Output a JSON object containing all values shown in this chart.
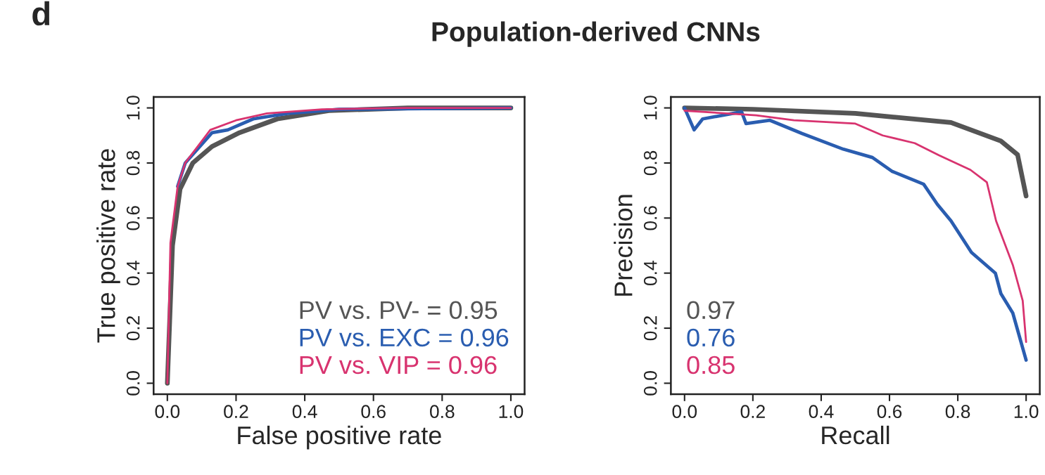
{
  "chart_data": [
    {
      "type": "line",
      "title": "Population-derived CNNs",
      "xlabel": "False positive rate",
      "ylabel": "True positive rate",
      "annotations": [
        "d"
      ],
      "xlim": [
        -0.04,
        1.04
      ],
      "ylim": [
        -0.04,
        1.04
      ],
      "xticks": [
        {
          "value": 0,
          "label": "0.0"
        },
        {
          "value": 0.2,
          "label": "0.2"
        },
        {
          "value": 0.4,
          "label": "0.4"
        },
        {
          "value": 0.6,
          "label": "0.6"
        },
        {
          "value": 0.8,
          "label": "0.8"
        },
        {
          "value": 1,
          "label": "1.0"
        }
      ],
      "yticks": [
        {
          "value": 0,
          "label": "0.0"
        },
        {
          "value": 0.2,
          "label": "0.2"
        },
        {
          "value": 0.4,
          "label": "0.4"
        },
        {
          "value": 0.6,
          "label": "0.6"
        },
        {
          "value": 0.8,
          "label": "0.8"
        },
        {
          "value": 1,
          "label": "1.0"
        }
      ],
      "grid": false,
      "legend": "bottom right",
      "series": [
        {
          "name": "PV vs. PV- = 0.95",
          "color": "#555555",
          "x": [
            0,
            0.015,
            0.037,
            0.074,
            0.13,
            0.21,
            0.32,
            0.47,
            0.7,
            1.0
          ],
          "values": [
            0,
            0.5,
            0.705,
            0.8,
            0.86,
            0.91,
            0.96,
            0.99,
            1.0,
            1.0
          ]
        },
        {
          "name": "PV vs. EXC = 0.96",
          "color": "#2a5db0",
          "x": [
            0.03,
            0.052,
            0.13,
            0.176,
            0.25,
            0.35,
            0.5,
            1.0
          ],
          "values": [
            0.715,
            0.8,
            0.91,
            0.92,
            0.96,
            0.98,
            0.995,
            1.0
          ]
        },
        {
          "name": "PV vs. VIP = 0.96",
          "color": "#d8336f",
          "x": [
            0,
            0.009,
            0.03,
            0.052,
            0.125,
            0.2,
            0.29,
            0.45,
            0.7,
            1.0
          ],
          "values": [
            0,
            0.51,
            0.715,
            0.8,
            0.92,
            0.955,
            0.98,
            0.995,
            1.0,
            1.0
          ]
        }
      ]
    },
    {
      "type": "line",
      "xlabel": "Recall",
      "ylabel": "Precision",
      "xlim": [
        -0.04,
        1.04
      ],
      "ylim": [
        -0.04,
        1.04
      ],
      "xticks": [
        {
          "value": 0,
          "label": "0.0"
        },
        {
          "value": 0.2,
          "label": "0.2"
        },
        {
          "value": 0.4,
          "label": "0.4"
        },
        {
          "value": 0.6,
          "label": "0.6"
        },
        {
          "value": 0.8,
          "label": "0.8"
        },
        {
          "value": 1,
          "label": "1.0"
        }
      ],
      "yticks": [
        {
          "value": 0,
          "label": "0.0"
        },
        {
          "value": 0.2,
          "label": "0.2"
        },
        {
          "value": 0.4,
          "label": "0.4"
        },
        {
          "value": 0.6,
          "label": "0.6"
        },
        {
          "value": 0.8,
          "label": "0.8"
        },
        {
          "value": 1,
          "label": "1.0"
        }
      ],
      "grid": false,
      "legend": "bottom left",
      "series": [
        {
          "name": "0.97",
          "color": "#555555",
          "x": [
            0,
            0.2,
            0.5,
            0.78,
            0.926,
            0.975,
            1.0
          ],
          "values": [
            1.0,
            0.995,
            0.98,
            0.947,
            0.88,
            0.83,
            0.68
          ]
        },
        {
          "name": "0.76",
          "color": "#2a5db0",
          "x": [
            0,
            0.028,
            0.053,
            0.167,
            0.18,
            0.25,
            0.344,
            0.465,
            0.55,
            0.607,
            0.7,
            0.74,
            0.78,
            0.84,
            0.91,
            0.926,
            0.961,
            1.0
          ],
          "values": [
            1.0,
            0.92,
            0.96,
            0.986,
            0.943,
            0.955,
            0.907,
            0.85,
            0.82,
            0.77,
            0.723,
            0.65,
            0.59,
            0.475,
            0.4,
            0.326,
            0.255,
            0.084
          ]
        },
        {
          "name": "0.85",
          "color": "#d8336f",
          "x": [
            0,
            0.21,
            0.32,
            0.5,
            0.58,
            0.674,
            0.745,
            0.837,
            0.885,
            0.912,
            0.961,
            0.99,
            1.0
          ],
          "values": [
            0.99,
            0.973,
            0.955,
            0.943,
            0.9,
            0.872,
            0.828,
            0.775,
            0.73,
            0.59,
            0.43,
            0.3,
            0.15
          ]
        }
      ]
    }
  ]
}
